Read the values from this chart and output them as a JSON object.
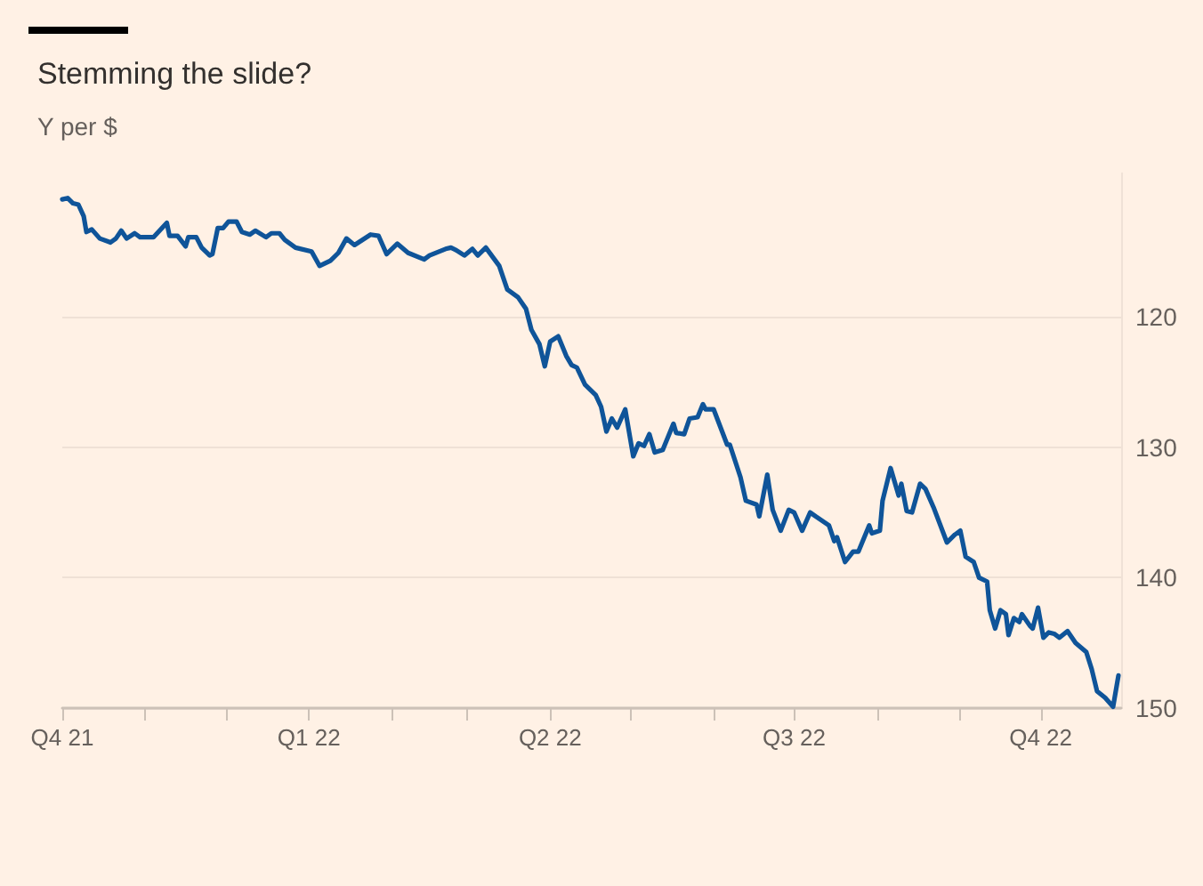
{
  "chart_data": {
    "type": "line",
    "title": "Stemming the slide?",
    "subtitle": "Y per $",
    "x": [
      "2021-10-01",
      "2021-10-03",
      "2021-10-05",
      "2021-10-07",
      "2021-10-09",
      "2021-10-10",
      "2021-10-12",
      "2021-10-15",
      "2021-10-19",
      "2021-10-21",
      "2021-10-23",
      "2021-10-25",
      "2021-10-28",
      "2021-10-30",
      "2021-11-04",
      "2021-11-09",
      "2021-11-10",
      "2021-11-13",
      "2021-11-16",
      "2021-11-17",
      "2021-11-20",
      "2021-11-22",
      "2021-11-25",
      "2021-11-26",
      "2021-11-28",
      "2021-11-30",
      "2021-12-02",
      "2021-12-05",
      "2021-12-07",
      "2021-12-10",
      "2021-12-12",
      "2021-12-16",
      "2021-12-18",
      "2021-12-21",
      "2021-12-23",
      "2021-12-27",
      "2022-01-02",
      "2022-01-05",
      "2022-01-09",
      "2022-01-12",
      "2022-01-15",
      "2022-01-18",
      "2022-01-24",
      "2022-01-27",
      "2022-01-30",
      "2022-02-03",
      "2022-02-07",
      "2022-02-13",
      "2022-02-15",
      "2022-02-21",
      "2022-02-23",
      "2022-02-25",
      "2022-02-28",
      "2022-03-03",
      "2022-03-05",
      "2022-03-08",
      "2022-03-13",
      "2022-03-16",
      "2022-03-20",
      "2022-03-23",
      "2022-03-25",
      "2022-03-28",
      "2022-03-30",
      "2022-04-01",
      "2022-04-04",
      "2022-04-07",
      "2022-04-09",
      "2022-04-11",
      "2022-04-14",
      "2022-04-18",
      "2022-04-20",
      "2022-04-22",
      "2022-04-24",
      "2022-04-26",
      "2022-04-29",
      "2022-05-02",
      "2022-05-04",
      "2022-05-06",
      "2022-05-08",
      "2022-05-10",
      "2022-05-13",
      "2022-05-17",
      "2022-05-18",
      "2022-05-21",
      "2022-05-23",
      "2022-05-26",
      "2022-05-28",
      "2022-05-29",
      "2022-06-01",
      "2022-06-06",
      "2022-06-07",
      "2022-06-11",
      "2022-06-13",
      "2022-06-17",
      "2022-06-18",
      "2022-06-21",
      "2022-06-23",
      "2022-06-26",
      "2022-06-29",
      "2022-07-01",
      "2022-07-04",
      "2022-07-07",
      "2022-07-09",
      "2022-07-14",
      "2022-07-16",
      "2022-07-17",
      "2022-07-20",
      "2022-07-23",
      "2022-07-25",
      "2022-07-29",
      "2022-07-30",
      "2022-08-02",
      "2022-08-03",
      "2022-08-06",
      "2022-08-09",
      "2022-08-10",
      "2022-08-12",
      "2022-08-14",
      "2022-08-17",
      "2022-08-19",
      "2022-08-22",
      "2022-08-27",
      "2022-08-30",
      "2022-09-01",
      "2022-09-03",
      "2022-09-06",
      "2022-09-08",
      "2022-09-11",
      "2022-09-12",
      "2022-09-14",
      "2022-09-16",
      "2022-09-18",
      "2022-09-19",
      "2022-09-21",
      "2022-09-23",
      "2022-09-24",
      "2022-09-27",
      "2022-09-28",
      "2022-09-30",
      "2022-10-02",
      "2022-10-04",
      "2022-10-06",
      "2022-10-08",
      "2022-10-11",
      "2022-10-14",
      "2022-10-18",
      "2022-10-20",
      "2022-10-22",
      "2022-10-25",
      "2022-10-28",
      "2022-10-30"
    ],
    "series": [
      {
        "color": "#0f5499",
        "values": [
          111.0,
          110.9,
          111.3,
          111.4,
          112.3,
          113.5,
          113.3,
          114.0,
          114.3,
          114.0,
          113.4,
          114.0,
          113.6,
          113.9,
          113.9,
          112.8,
          113.8,
          113.8,
          114.6,
          113.9,
          113.9,
          114.7,
          115.3,
          115.2,
          113.2,
          113.2,
          112.7,
          112.7,
          113.5,
          113.7,
          113.4,
          113.9,
          113.6,
          113.6,
          114.1,
          114.7,
          115.0,
          116.1,
          115.7,
          115.1,
          114.0,
          114.5,
          113.7,
          113.8,
          115.2,
          114.4,
          115.1,
          115.6,
          115.3,
          114.8,
          114.7,
          114.9,
          115.3,
          114.8,
          115.3,
          114.7,
          116.1,
          117.9,
          118.5,
          119.4,
          121.0,
          122.1,
          123.8,
          121.9,
          121.5,
          123.0,
          123.7,
          123.9,
          125.2,
          126.0,
          126.9,
          128.8,
          127.8,
          128.5,
          127.1,
          130.7,
          129.7,
          129.9,
          129.0,
          130.4,
          130.2,
          128.2,
          128.9,
          129.0,
          127.8,
          127.7,
          126.7,
          127.1,
          127.1,
          129.8,
          129.8,
          132.3,
          134.1,
          134.4,
          135.3,
          132.1,
          134.8,
          136.4,
          134.8,
          135.0,
          136.4,
          135.0,
          135.3,
          136.0,
          137.2,
          136.9,
          138.8,
          138.0,
          138.0,
          136.0,
          136.6,
          136.4,
          134.1,
          131.6,
          133.7,
          132.8,
          134.9,
          135.0,
          132.8,
          133.2,
          134.6,
          137.3,
          136.7,
          136.4,
          138.4,
          138.8,
          140.0,
          140.3,
          142.5,
          143.9,
          142.5,
          142.8,
          144.4,
          143.1,
          143.4,
          142.8,
          143.7,
          143.9,
          142.3,
          144.6,
          144.2,
          144.3,
          144.6,
          144.1,
          145.0,
          145.7,
          147.0,
          148.7,
          149.2,
          149.9,
          147.5
        ]
      }
    ],
    "xlim": [
      "2021-10-01",
      "2022-10-31"
    ],
    "xticks": [
      {
        "value": "2021-10-01",
        "label": "Q4 21"
      },
      {
        "value": "2021-11-01",
        "label": null
      },
      {
        "value": "2021-12-01",
        "label": null
      },
      {
        "value": "2022-01-01",
        "label": "Q1 22"
      },
      {
        "value": "2022-02-01",
        "label": null
      },
      {
        "value": "2022-03-01",
        "label": null
      },
      {
        "value": "2022-04-01",
        "label": "Q2 22"
      },
      {
        "value": "2022-05-01",
        "label": null
      },
      {
        "value": "2022-06-01",
        "label": null
      },
      {
        "value": "2022-07-01",
        "label": "Q3 22"
      },
      {
        "value": "2022-08-01",
        "label": null
      },
      {
        "value": "2022-09-01",
        "label": null
      },
      {
        "value": "2022-10-01",
        "label": "Q4 22"
      }
    ],
    "ylim": [
      150,
      109
    ],
    "yticks": [
      120,
      130,
      140,
      150
    ],
    "grid": "y",
    "marker": "none",
    "line_style": "solid"
  }
}
